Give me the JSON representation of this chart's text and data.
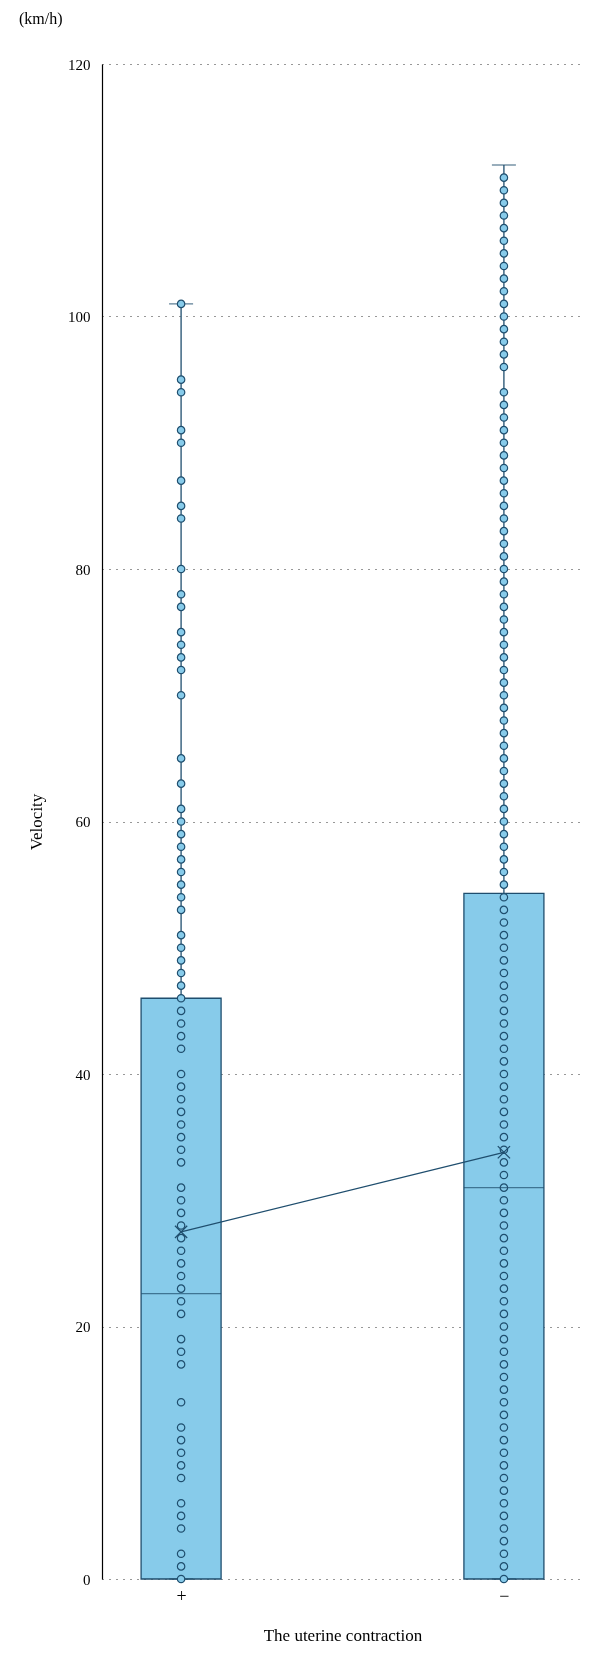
{
  "chart_data": {
    "type": "box",
    "xlabel": "The uterine contraction",
    "ylabel": "Velocity",
    "annotations": [
      "(km/h)"
    ],
    "categories": [
      "+",
      "−"
    ],
    "ylim": [
      0,
      120
    ],
    "yticks": [
      0,
      20,
      40,
      60,
      80,
      100,
      120
    ],
    "grid": "y",
    "series": [
      {
        "type": "box",
        "color": "#87cbea",
        "boxes": [
          {
            "low": 0,
            "q1": 0,
            "median": 22.6,
            "q3": 46,
            "high": 101
          },
          {
            "low": 0,
            "q1": 0,
            "median": 31,
            "q3": 54.3,
            "high": 112
          }
        ]
      },
      {
        "type": "scatter",
        "color": "#87cbea",
        "marker": "circle",
        "x": [
          "+",
          "+",
          "+",
          "+",
          "+",
          "+",
          "+",
          "+",
          "+",
          "+",
          "+",
          "+",
          "+",
          "+",
          "+",
          "+",
          "+",
          "+",
          "+",
          "+",
          "+",
          "+",
          "+",
          "+",
          "+",
          "+",
          "+",
          "+",
          "+",
          "+",
          "+",
          "+",
          "+",
          "+",
          "+",
          "+",
          "+",
          "+",
          "+",
          "+",
          "+",
          "+",
          "+",
          "+",
          "+",
          "+",
          "+",
          "+",
          "+",
          "+",
          "+",
          "+",
          "+",
          "+",
          "+",
          "+",
          "+",
          "+",
          "+",
          "+",
          "+",
          "+",
          "+",
          "+",
          "+",
          "+",
          "+",
          "+",
          "+",
          "+",
          "+"
        ],
        "values": [
          0,
          1,
          2,
          4,
          5,
          6,
          8,
          9,
          10,
          11,
          12,
          14,
          17,
          18,
          19,
          21,
          22,
          23,
          24,
          25,
          26,
          27,
          28,
          29,
          30,
          31,
          33,
          34,
          35,
          36,
          37,
          38,
          39,
          40,
          42,
          43,
          44,
          45,
          46,
          47,
          48,
          49,
          50,
          51,
          53,
          54,
          55,
          56,
          57,
          58,
          59,
          60,
          61,
          63,
          65,
          70,
          72,
          73,
          74,
          75,
          77,
          78,
          80,
          84,
          85,
          87,
          90,
          91,
          94,
          95,
          101
        ]
      },
      {
        "type": "scatter",
        "color": "#87cbea",
        "marker": "circle",
        "x": [
          "−",
          "−",
          "−",
          "−",
          "−",
          "−",
          "−",
          "−",
          "−",
          "−",
          "−",
          "−",
          "−",
          "−",
          "−",
          "−",
          "−",
          "−",
          "−",
          "−",
          "−",
          "−",
          "−",
          "−",
          "−",
          "−",
          "−",
          "−",
          "−",
          "−",
          "−",
          "−",
          "−",
          "−",
          "−",
          "−",
          "−",
          "−",
          "−",
          "−",
          "−",
          "−",
          "−",
          "−",
          "−",
          "−",
          "−",
          "−",
          "−",
          "−",
          "−",
          "−",
          "−",
          "−",
          "−",
          "−",
          "−",
          "−",
          "−",
          "−",
          "−",
          "−",
          "−",
          "−",
          "−",
          "−",
          "−",
          "−",
          "−",
          "−",
          "−",
          "−",
          "−",
          "−",
          "−",
          "−",
          "−",
          "−",
          "−",
          "−",
          "−",
          "−",
          "−",
          "−",
          "−",
          "−",
          "−",
          "−",
          "−",
          "−",
          "−",
          "−",
          "−",
          "−",
          "−",
          "−",
          "−",
          "−",
          "−",
          "−",
          "−",
          "−",
          "−",
          "−",
          "−",
          "−",
          "−",
          "−",
          "−",
          "−",
          "−"
        ],
        "values": [
          0,
          1,
          2,
          3,
          4,
          5,
          6,
          7,
          8,
          9,
          10,
          11,
          12,
          13,
          14,
          15,
          16,
          17,
          18,
          19,
          20,
          21,
          22,
          23,
          24,
          25,
          26,
          27,
          28,
          29,
          30,
          31,
          32,
          33,
          34,
          35,
          36,
          37,
          38,
          39,
          40,
          41,
          42,
          43,
          44,
          45,
          46,
          47,
          48,
          49,
          50,
          51,
          52,
          53,
          54,
          55,
          56,
          57,
          58,
          59,
          60,
          61,
          62,
          63,
          64,
          65,
          66,
          67,
          68,
          69,
          70,
          71,
          72,
          73,
          74,
          75,
          76,
          77,
          78,
          79,
          80,
          81,
          82,
          83,
          84,
          85,
          86,
          87,
          88,
          89,
          90,
          91,
          92,
          93,
          94,
          96,
          97,
          98,
          99,
          100,
          101,
          102,
          103,
          104,
          105,
          106,
          107,
          108,
          109,
          110,
          111
        ]
      },
      {
        "type": "line",
        "color": "#1f4e6e",
        "marker": "cross",
        "line_style": "solid",
        "values": [
          27.5,
          33.8
        ]
      }
    ]
  }
}
